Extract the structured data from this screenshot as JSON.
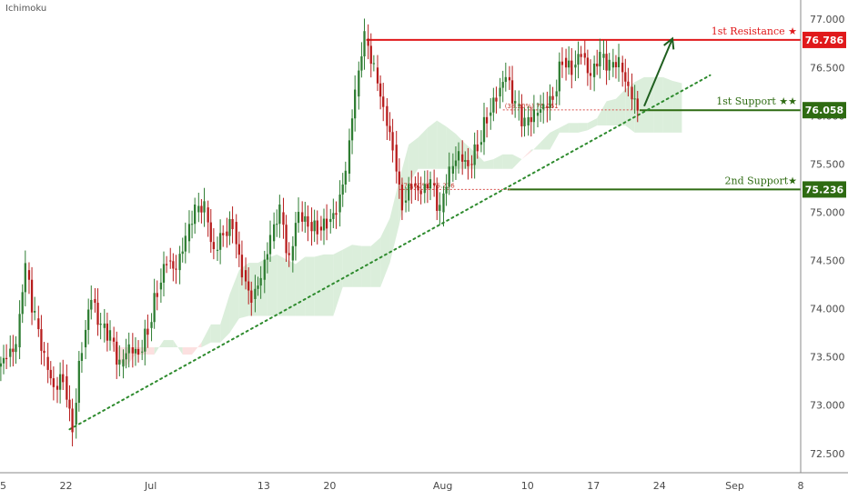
{
  "study": {
    "label": "Ichimoku"
  },
  "colors": {
    "up": "#2e7d32",
    "down": "#b71c1c",
    "resistance": "#e0191b",
    "support": "#2e6b12",
    "trendline": "#2e8b2e",
    "cloud_bull": "#cfe8cf",
    "cloud_bear": "#fbd5d5",
    "fib": "#d9534f"
  },
  "chart_data": {
    "type": "candlestick",
    "title": "",
    "xlabel": "",
    "ylabel": "",
    "ylim": [
      72.3,
      77.2
    ],
    "grid": false,
    "y_ticks": [
      "72.500",
      "73.000",
      "73.500",
      "74.000",
      "74.500",
      "75.000",
      "75.500",
      "76.000",
      "76.500",
      "77.000"
    ],
    "x_ticks": [
      {
        "label": "15",
        "day": 0
      },
      {
        "label": "22",
        "day": 7
      },
      {
        "label": "Jul",
        "day": 16
      },
      {
        "label": "13",
        "day": 28
      },
      {
        "label": "20",
        "day": 35
      },
      {
        "label": "Aug",
        "day": 47
      },
      {
        "label": "10",
        "day": 56
      },
      {
        "label": "17",
        "day": 63
      },
      {
        "label": "24",
        "day": 70
      },
      {
        "label": "Sep",
        "day": 78
      },
      {
        "label": "8",
        "day": 85
      }
    ],
    "levels": [
      {
        "name": "1st Resistance ★",
        "value": 76.786,
        "badge": "76.786",
        "role": "resistance"
      },
      {
        "name": "1st Support ★★",
        "value": 76.058,
        "badge": "76.058",
        "role": "support"
      },
      {
        "name": "2nd Support★",
        "value": 75.236,
        "badge": "75.236",
        "role": "support"
      }
    ],
    "fib_labels": [
      {
        "text": "(38.20%) 76.061",
        "value": 76.061,
        "day_start": 53,
        "day_end": 67
      },
      {
        "text": "(78.60%) 75.236",
        "value": 75.236,
        "day_start": 42,
        "day_end": 54
      }
    ],
    "trendline": {
      "start": {
        "day": 7,
        "value": 72.75
      },
      "end": {
        "day": 75,
        "value": 76.42
      }
    },
    "projection_arrow": {
      "start": {
        "day": 68,
        "value": 76.1
      },
      "end": {
        "day": 71,
        "value": 76.8
      }
    },
    "closes": [
      [
        0,
        73.5
      ],
      [
        1,
        73.6
      ],
      [
        2,
        74.4
      ],
      [
        3,
        73.9
      ],
      [
        4,
        73.5
      ],
      [
        5,
        73.2
      ],
      [
        6,
        73.3
      ],
      [
        7,
        72.8
      ],
      [
        8,
        73.6
      ],
      [
        9,
        74.1
      ],
      [
        10,
        73.8
      ],
      [
        11,
        73.7
      ],
      [
        12,
        73.4
      ],
      [
        13,
        73.6
      ],
      [
        14,
        73.55
      ],
      [
        15,
        73.8
      ],
      [
        16,
        74.2
      ],
      [
        17,
        74.5
      ],
      [
        18,
        74.4
      ],
      [
        19,
        74.7
      ],
      [
        20,
        75.0
      ],
      [
        21,
        75.05
      ],
      [
        22,
        74.6
      ],
      [
        23,
        74.8
      ],
      [
        24,
        74.9
      ],
      [
        25,
        74.4
      ],
      [
        26,
        74.1
      ],
      [
        27,
        74.3
      ],
      [
        28,
        74.7
      ],
      [
        29,
        75.0
      ],
      [
        30,
        74.5
      ],
      [
        31,
        75.0
      ],
      [
        32,
        74.9
      ],
      [
        33,
        74.85
      ],
      [
        34,
        74.9
      ],
      [
        35,
        75.0
      ],
      [
        36,
        75.4
      ],
      [
        37,
        76.2
      ],
      [
        38,
        76.8
      ],
      [
        39,
        76.5
      ],
      [
        40,
        76.1
      ],
      [
        41,
        75.7
      ],
      [
        42,
        75.1
      ],
      [
        43,
        75.3
      ],
      [
        44,
        75.2
      ],
      [
        45,
        75.3
      ],
      [
        46,
        75.0
      ],
      [
        47,
        75.4
      ],
      [
        48,
        75.6
      ],
      [
        49,
        75.5
      ],
      [
        50,
        75.7
      ],
      [
        51,
        76.0
      ],
      [
        52,
        76.2
      ],
      [
        53,
        76.4
      ],
      [
        54,
        76.1
      ],
      [
        55,
        75.9
      ],
      [
        56,
        76.0
      ],
      [
        57,
        76.1
      ],
      [
        58,
        76.2
      ],
      [
        59,
        76.6
      ],
      [
        60,
        76.5
      ],
      [
        61,
        76.65
      ],
      [
        62,
        76.4
      ],
      [
        63,
        76.6
      ],
      [
        64,
        76.5
      ],
      [
        65,
        76.55
      ],
      [
        66,
        76.3
      ],
      [
        67,
        76.1
      ]
    ]
  }
}
